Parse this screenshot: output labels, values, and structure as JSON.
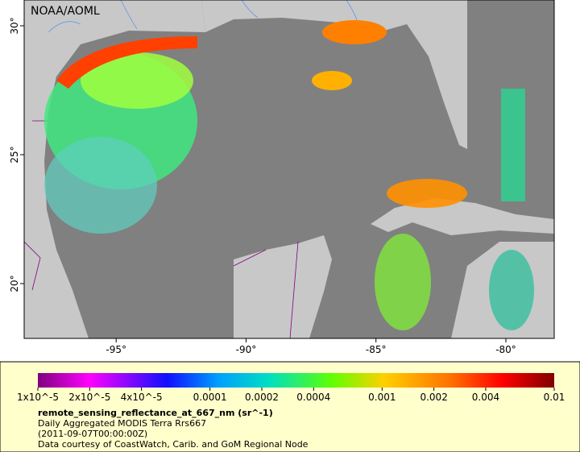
{
  "map": {
    "credit": "NOAA/AOML",
    "lon_range": [
      -98.54,
      -78.14
    ],
    "lat_range": [
      17.875,
      31
    ],
    "lon_ticks": [
      {
        "value": -95,
        "label": "-95°"
      },
      {
        "value": -90,
        "label": "-90°"
      },
      {
        "value": -85,
        "label": "-85°"
      },
      {
        "value": -80,
        "label": "-80°"
      }
    ],
    "lat_ticks": [
      {
        "value": 30,
        "label": "30°"
      },
      {
        "value": 25,
        "label": "25°"
      },
      {
        "value": 20,
        "label": "20°"
      }
    ]
  },
  "legend": {
    "range": [
      1e-05,
      0.01
    ],
    "scale": "log",
    "ticks": [
      {
        "value": 1e-05,
        "label": "1x10^-5"
      },
      {
        "value": 2e-05,
        "label": "2x10^-5"
      },
      {
        "value": 4e-05,
        "label": "4x10^-5"
      },
      {
        "value": 0.0001,
        "label": "0.0001"
      },
      {
        "value": 0.0002,
        "label": "0.0002"
      },
      {
        "value": 0.0004,
        "label": "0.0004"
      },
      {
        "value": 0.001,
        "label": "0.001"
      },
      {
        "value": 0.002,
        "label": "0.002"
      },
      {
        "value": 0.004,
        "label": "0.004"
      },
      {
        "value": 0.01,
        "label": "0.01"
      }
    ],
    "variable": "remote_sensing_reflectance_at_667_nm (sr^-1)",
    "dataset": "Daily Aggregated MODIS Terra Rrs667",
    "time": "(2011-09-07T00:00:00Z)",
    "courtesy": "Data courtesy of CoastWatch, Carib. and GoM Regional Node"
  }
}
